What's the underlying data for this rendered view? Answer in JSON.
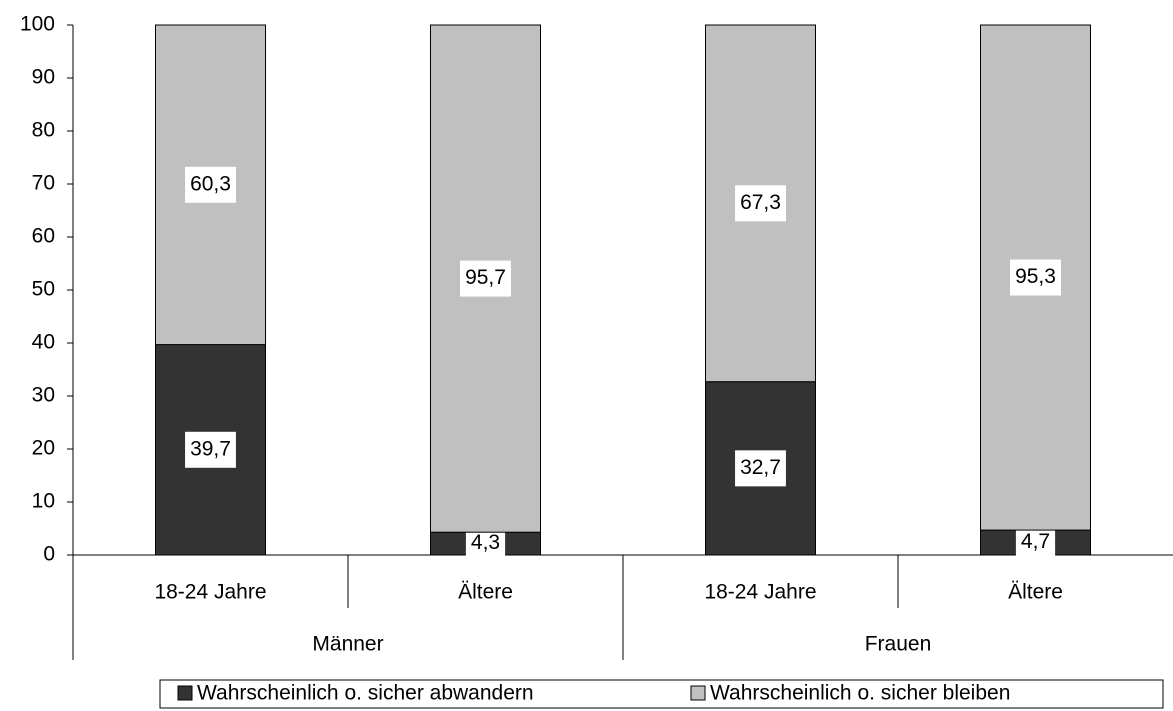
{
  "chart_data": {
    "type": "stacked_bar",
    "categories": [
      "18-24 Jahre",
      "Ältere",
      "18-24 Jahre",
      "Ältere"
    ],
    "groups": [
      "Männer",
      "Frauen"
    ],
    "series": [
      {
        "name": "Wahrscheinlich o. sicher abwandern",
        "color": "#333333",
        "values": [
          39.7,
          4.3,
          32.7,
          4.7
        ],
        "value_labels": [
          "39,7",
          "4,3",
          "32,7",
          "4,7"
        ]
      },
      {
        "name": "Wahrscheinlich o. sicher bleiben",
        "color": "#c0c0c0",
        "values": [
          60.3,
          95.7,
          67.3,
          95.3
        ],
        "value_labels": [
          "60,3",
          "95,7",
          "67,3",
          "95,3"
        ]
      }
    ],
    "ylim": [
      0,
      100
    ],
    "yticks": [
      0,
      10,
      20,
      30,
      40,
      50,
      60,
      70,
      80,
      90,
      100
    ],
    "grid": false,
    "legend": "bottom"
  }
}
